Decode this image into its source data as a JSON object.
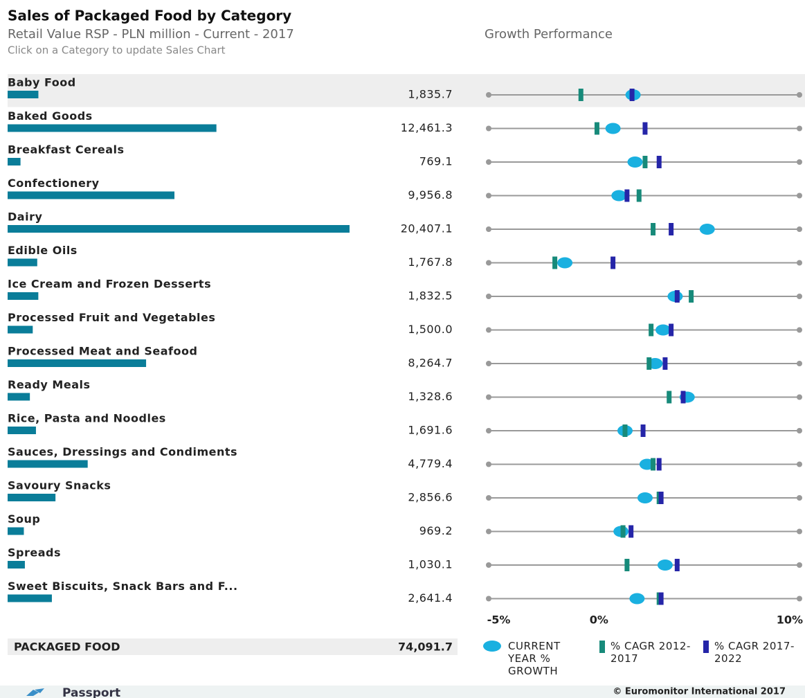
{
  "header": {
    "title": "Sales of Packaged Food by Category",
    "subtitle": "Retail Value RSP - PLN million - Current - 2017",
    "instruction": "Click on a Category to update Sales Chart",
    "growth_title": "Growth Performance"
  },
  "chart_data": [
    {
      "type": "bar",
      "orientation": "horizontal",
      "color": "#0a7d99",
      "categories": [
        "Baby Food",
        "Baked Goods",
        "Breakfast Cereals",
        "Confectionery",
        "Dairy",
        "Edible Oils",
        "Ice Cream and Frozen Desserts",
        "Processed Fruit and Vegetables",
        "Processed Meat and Seafood",
        "Ready Meals",
        "Rice, Pasta and Noodles",
        "Sauces, Dressings and Condiments",
        "Savoury Snacks",
        "Soup",
        "Spreads",
        "Sweet Biscuits, Snack Bars and F..."
      ],
      "values": [
        1835.7,
        12461.3,
        769.1,
        9956.8,
        20407.1,
        1767.8,
        1832.5,
        1500.0,
        8264.7,
        1328.6,
        1691.6,
        4779.4,
        2856.6,
        969.2,
        1030.1,
        2641.4
      ],
      "value_labels": [
        "1,835.7",
        "12,461.3",
        "769.1",
        "9,956.8",
        "20,407.1",
        "1,767.8",
        "1,832.5",
        "1,500.0",
        "8,264.7",
        "1,328.6",
        "1,691.6",
        "4,779.4",
        "2,856.6",
        "969.2",
        "1,030.1",
        "2,641.4"
      ],
      "xlim": [
        0,
        20407.1
      ]
    },
    {
      "type": "dot",
      "xlim": [
        -5.5,
        10
      ],
      "xticks": [
        {
          "value": -5,
          "label": "-5%"
        },
        {
          "value": 0,
          "label": "0%"
        },
        {
          "value": 10,
          "label": "10%"
        }
      ],
      "series": [
        {
          "name": "CURRENT YEAR % GROWTH",
          "color": "#1ab0e0",
          "marker": "ellipse",
          "values": [
            1.7,
            0.7,
            1.8,
            1.0,
            5.4,
            -1.7,
            3.8,
            3.2,
            2.8,
            4.4,
            1.3,
            2.4,
            2.3,
            1.1,
            3.3,
            1.9
          ]
        },
        {
          "name": "% CAGR 2012-2017",
          "color": "#178a7a",
          "marker": "bar",
          "values": [
            -0.9,
            -0.1,
            2.3,
            2.0,
            2.7,
            -2.2,
            4.6,
            2.6,
            2.5,
            3.5,
            1.3,
            2.7,
            3.0,
            1.2,
            1.4,
            3.0
          ]
        },
        {
          "name": "% CAGR 2017-2022",
          "color": "#2525a8",
          "marker": "bar",
          "values": [
            1.65,
            2.3,
            3.0,
            1.4,
            3.6,
            0.7,
            3.9,
            3.6,
            3.3,
            4.2,
            2.2,
            3.0,
            3.1,
            1.6,
            3.9,
            3.1
          ]
        }
      ]
    }
  ],
  "total": {
    "name": "PACKAGED FOOD",
    "value": "74,091.7"
  },
  "footer": {
    "brand": "Passport",
    "copyright": "© Euromonitor International 2017"
  }
}
